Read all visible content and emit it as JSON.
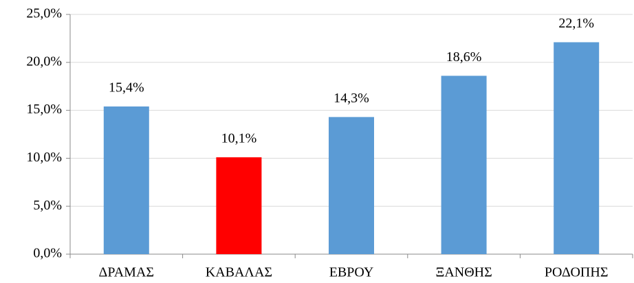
{
  "chart_data": {
    "type": "bar",
    "categories": [
      "ΔΡΑΜΑΣ",
      "ΚΑΒΑΛΑΣ",
      "ΕΒΡΟΥ",
      "ΞΑΝΘΗΣ",
      "ΡΟΔΟΠΗΣ"
    ],
    "values": [
      15.4,
      10.1,
      14.3,
      18.6,
      22.1
    ],
    "value_labels": [
      "15,4%",
      "10,1%",
      "14,3%",
      "18,6%",
      "22,1%"
    ],
    "colors": [
      "#5b9bd5",
      "#ff0000",
      "#5b9bd5",
      "#5b9bd5",
      "#5b9bd5"
    ],
    "ylim": [
      0,
      25
    ],
    "yticks": [
      {
        "value": 0,
        "label": "0,0%"
      },
      {
        "value": 5,
        "label": "5,0%"
      },
      {
        "value": 10,
        "label": "10,0%"
      },
      {
        "value": 15,
        "label": "15,0%"
      },
      {
        "value": 20,
        "label": "20,0%"
      },
      {
        "value": 25,
        "label": "25,0%"
      }
    ],
    "grid": true
  }
}
